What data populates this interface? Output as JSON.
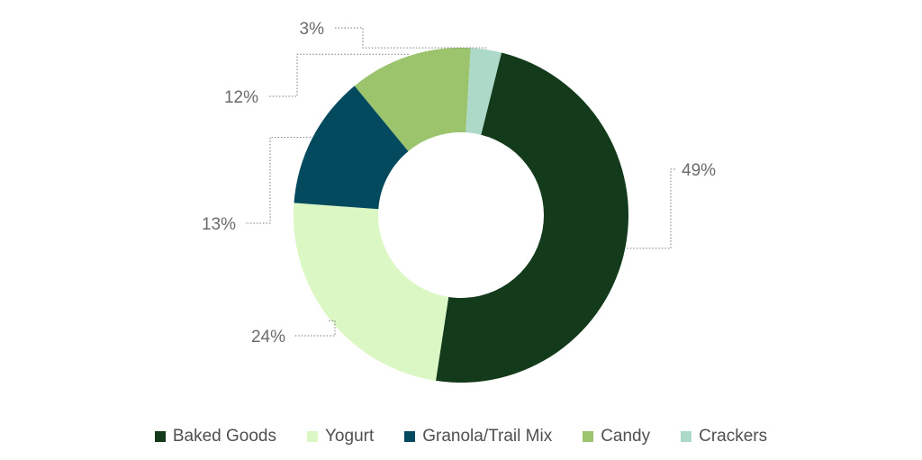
{
  "chart_data": {
    "type": "pie",
    "variant": "donut",
    "title": "",
    "categories": [
      "Baked Goods",
      "Yogurt",
      "Granola/Trail Mix",
      "Candy",
      "Crackers"
    ],
    "values": [
      49,
      24,
      13,
      12,
      3
    ],
    "labels": [
      "49%",
      "24%",
      "13%",
      "12%",
      "3%"
    ],
    "colors": [
      "#133b1b",
      "#dbf7c4",
      "#034a5f",
      "#9bc46c",
      "#add9c9"
    ],
    "legend_position": "bottom",
    "start_angle": "top, slightly right of center",
    "direction": "clockwise"
  }
}
